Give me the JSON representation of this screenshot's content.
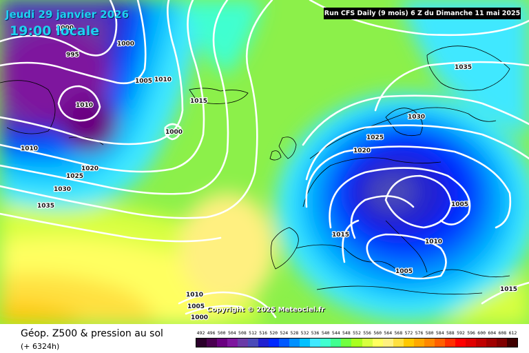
{
  "header": {
    "forecast_date": "Jeudi 29 janvier 2026",
    "forecast_time": "19:00 locale",
    "run_info": "Run CFS Daily (9 mois) 6 Z du Dimanche 11 mai 2025"
  },
  "copyright": "Copyright © 2025 Meteociel.fr",
  "footer": {
    "product_title": "Géop. Z500 & pression au sol",
    "lead_time": "(+ 6324h)"
  },
  "map": {
    "isobar_labels": [
      "995",
      "1000",
      "1005",
      "1010",
      "1010",
      "1015",
      "1000",
      "1010",
      "1020",
      "1025",
      "1030",
      "1035",
      "1035",
      "1030",
      "1025",
      "1020",
      "1005",
      "1015",
      "1010",
      "1005",
      "1015",
      "1010",
      "1005",
      "1000",
      "1000"
    ],
    "high_pressure_color": "#fff080",
    "low_pressure_color": "#5a0080"
  },
  "color_scale": {
    "unit_values": [
      "492",
      "496",
      "500",
      "504",
      "508",
      "512",
      "516",
      "520",
      "524",
      "528",
      "532",
      "536",
      "540",
      "544",
      "548",
      "552",
      "556",
      "560",
      "564",
      "568",
      "572",
      "576",
      "580",
      "584",
      "588",
      "592",
      "596",
      "600",
      "604",
      "608",
      "612"
    ],
    "colors": [
      "#2a002a",
      "#4a0050",
      "#6a0080",
      "#7e169e",
      "#6a3aa6",
      "#4a4ab8",
      "#2020d0",
      "#0028ff",
      "#0058ff",
      "#0090ff",
      "#00c0ff",
      "#40e8ff",
      "#40ffd0",
      "#40ff90",
      "#70ff40",
      "#a8ff20",
      "#d8ff40",
      "#ffff60",
      "#fff080",
      "#ffe040",
      "#ffc800",
      "#ffa800",
      "#ff8800",
      "#ff6000",
      "#ff3000",
      "#ff0000",
      "#e00000",
      "#c00000",
      "#a00000",
      "#800000",
      "#400000"
    ]
  }
}
